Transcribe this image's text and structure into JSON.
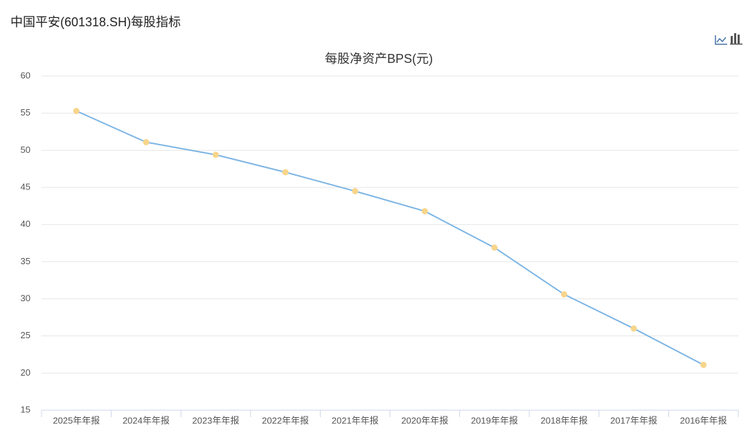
{
  "header": {
    "title": "中国平安(601318.SH)每股指标"
  },
  "chart_data": {
    "type": "line",
    "title": "每股净资产BPS(元)",
    "categories": [
      "2025年年报",
      "2024年年报",
      "2023年年报",
      "2022年年报",
      "2021年年报",
      "2020年年报",
      "2019年年报",
      "2018年年报",
      "2017年年报",
      "2016年年报"
    ],
    "series": [
      {
        "color": "#7cb5e4",
        "marker_color": "#f7d58b",
        "values": [
          55.3,
          51.1,
          49.4,
          47.05,
          44.5,
          41.8,
          36.9,
          30.6,
          26.0,
          21.1
        ]
      }
    ],
    "ylim": [
      15,
      60
    ],
    "yticks": [
      15,
      20,
      25,
      30,
      35,
      40,
      45,
      50,
      55,
      60
    ],
    "grid": true
  }
}
